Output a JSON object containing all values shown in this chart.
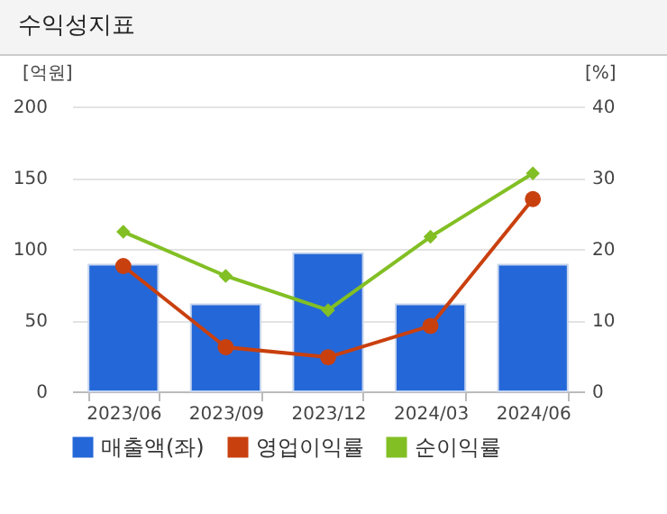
{
  "chart_data": {
    "type": "bar",
    "title": "수익성지표",
    "ylabel": "[억원]",
    "y2label": "[%]",
    "categories": [
      "2023/06",
      "2023/09",
      "2023/12",
      "2024/03",
      "2024/06"
    ],
    "series": [
      {
        "name": "매출액(좌)",
        "color": "#2467d8",
        "values": [
          89,
          61,
          97,
          61,
          89
        ]
      },
      {
        "name": "영업이익률",
        "type": "line",
        "axis": "y2",
        "marker": "circle",
        "color": "#c9400f",
        "values": [
          17.6,
          6.2,
          4.8,
          9.2,
          27.0
        ]
      },
      {
        "name": "순이익률",
        "type": "line",
        "axis": "y2",
        "marker": "diamond",
        "color": "#82bf24",
        "values": [
          22.4,
          16.2,
          11.4,
          21.7,
          30.6
        ]
      }
    ],
    "ylim": [
      0,
      200
    ],
    "yticks": [
      0,
      50,
      100,
      150,
      200
    ],
    "y2lim": [
      0,
      40
    ],
    "y2ticks": [
      0,
      10,
      20,
      30,
      40
    ],
    "grid": "y",
    "legend": "bottom"
  }
}
